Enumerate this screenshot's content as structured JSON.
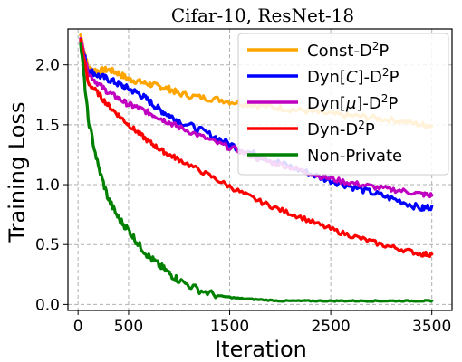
{
  "chart_data": {
    "type": "line",
    "title": "Cifar-10, ResNet-18",
    "xlabel": "Iteration",
    "ylabel": "Training Loss",
    "xlim": [
      -100,
      3700
    ],
    "ylim": [
      -0.05,
      2.3
    ],
    "xticks": [
      0,
      500,
      1500,
      2500,
      3500
    ],
    "yticks": [
      0.0,
      0.5,
      1.0,
      1.5,
      2.0
    ],
    "xtick_labels": [
      "0",
      "500",
      "1500",
      "2500",
      "3500"
    ],
    "ytick_labels": [
      "0.0",
      "0.5",
      "1.0",
      "1.5",
      "2.0"
    ],
    "grid": true,
    "legend_position": "top-right",
    "x": [
      25,
      100,
      200,
      300,
      400,
      500,
      600,
      700,
      800,
      900,
      1000,
      1200,
      1400,
      1600,
      1800,
      2000,
      2200,
      2400,
      2600,
      2800,
      3000,
      3200,
      3400,
      3500
    ],
    "series": [
      {
        "name": "Const-D²P",
        "legend_text": "Const-D",
        "legend_sup": "2",
        "legend_suffix": "P",
        "color": "#FFA500",
        "values": [
          2.25,
          1.97,
          1.95,
          1.96,
          1.93,
          1.88,
          1.86,
          1.84,
          1.82,
          1.8,
          1.76,
          1.73,
          1.71,
          1.68,
          1.66,
          1.64,
          1.62,
          1.6,
          1.58,
          1.57,
          1.55,
          1.53,
          1.5,
          1.49
        ]
      },
      {
        "name": "Dyn[C]-D²P",
        "legend_text": "Dyn[",
        "legend_italic": "C",
        "legend_after": "]-D",
        "legend_sup": "2",
        "legend_suffix": "P",
        "color": "#0000FF",
        "values": [
          2.2,
          1.96,
          1.91,
          1.88,
          1.84,
          1.8,
          1.76,
          1.7,
          1.63,
          1.58,
          1.53,
          1.46,
          1.38,
          1.3,
          1.24,
          1.18,
          1.12,
          1.06,
          1.01,
          0.96,
          0.91,
          0.86,
          0.8,
          0.82
        ]
      },
      {
        "name": "Dyn[μ]-D²P",
        "legend_text": "Dyn[",
        "legend_italic": "μ",
        "legend_after": "]-D",
        "legend_sup": "2",
        "legend_suffix": "P",
        "color": "#C000C0",
        "values": [
          2.22,
          1.93,
          1.84,
          1.77,
          1.72,
          1.67,
          1.64,
          1.6,
          1.56,
          1.52,
          1.48,
          1.41,
          1.34,
          1.28,
          1.21,
          1.17,
          1.12,
          1.07,
          1.03,
          1.0,
          0.97,
          0.95,
          0.92,
          0.91
        ]
      },
      {
        "name": "Dyn-D²P",
        "legend_text": "Dyn-D",
        "legend_sup": "2",
        "legend_suffix": "P",
        "color": "#FF0000",
        "values": [
          2.21,
          1.85,
          1.76,
          1.66,
          1.58,
          1.5,
          1.43,
          1.36,
          1.3,
          1.25,
          1.21,
          1.12,
          1.03,
          0.94,
          0.86,
          0.79,
          0.73,
          0.66,
          0.6,
          0.55,
          0.5,
          0.46,
          0.42,
          0.42
        ]
      },
      {
        "name": "Non-Private",
        "legend_text": "Non-Private",
        "color": "#008000",
        "values": [
          2.18,
          1.55,
          1.15,
          0.88,
          0.72,
          0.62,
          0.5,
          0.4,
          0.33,
          0.26,
          0.2,
          0.12,
          0.07,
          0.05,
          0.04,
          0.03,
          0.03,
          0.03,
          0.03,
          0.03,
          0.03,
          0.03,
          0.03,
          0.03
        ]
      }
    ]
  }
}
